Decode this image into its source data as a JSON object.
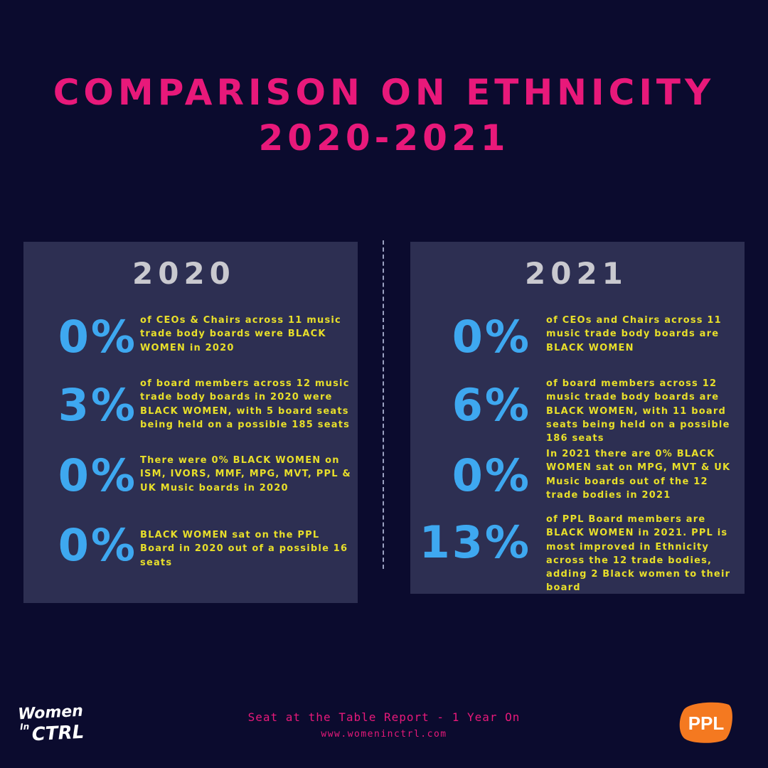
{
  "title": {
    "line1": "COMPARISON ON ETHNICITY",
    "line2": "2020-2021"
  },
  "panels": [
    {
      "year": "2020",
      "stats": [
        {
          "value": "0%",
          "text": "of CEOs & Chairs across 11 music trade body boards were BLACK WOMEN in 2020"
        },
        {
          "value": "3%",
          "text": "of board members across 12 music trade body boards in 2020 were BLACK WOMEN, with 5 board seats being held on a possible 185 seats"
        },
        {
          "value": "0%",
          "text": "There were 0% BLACK WOMEN on ISM, IVORS, MMF, MPG, MVT, PPL & UK Music boards in 2020"
        },
        {
          "value": "0%",
          "text": "BLACK WOMEN sat on the PPL Board in 2020 out of a possible 16 seats"
        }
      ]
    },
    {
      "year": "2021",
      "stats": [
        {
          "value": "0%",
          "text": "of CEOs and Chairs across 11 music trade body boards are BLACK WOMEN"
        },
        {
          "value": "6%",
          "text": "of board members across 12 music trade body boards are BLACK WOMEN, with 11 board seats being held on a possible 186 seats"
        },
        {
          "value": "0%",
          "text": "In 2021 there are 0% BLACK WOMEN sat on MPG, MVT & UK Music boards out of the 12 trade bodies in 2021"
        },
        {
          "value": "13%",
          "text": "of PPL Board members are BLACK WOMEN in 2021.  PPL is most improved in Ethnicity across the 12 trade bodies, adding 2 Black women to their board"
        }
      ]
    }
  ],
  "footer": {
    "report": "Seat at the Table Report - 1 Year On",
    "url": "www.womeninctrl.com"
  },
  "logos": {
    "women_in_ctrl": {
      "line1": "Women",
      "line2": "In",
      "line3": "CTRL"
    },
    "ppl": {
      "text": "PPL"
    }
  },
  "colors": {
    "background": "#0b0b2e",
    "panel": "#2d2f52",
    "title": "#e8197a",
    "percent": "#3ea8f0",
    "description": "#e8df2a",
    "year": "#c9c9cf",
    "ppl_orange": "#f47920"
  }
}
